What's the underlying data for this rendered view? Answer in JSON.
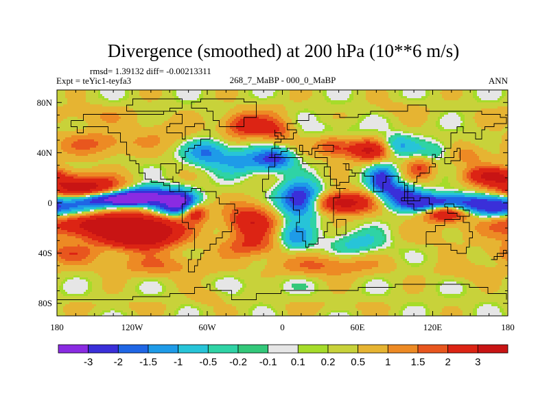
{
  "chart_data": {
    "type": "heatmap",
    "title": "Divergence (smoothed) at 200 hPa (10**6 m/s)",
    "stats_text": "rmsd= 1.39132 diff= -0.00213311",
    "left_label": "Expt = teYic1-teyfa3",
    "center_label": "268_7_MaBP - 000_0_MaBP",
    "right_label": "ANN",
    "x_axis": {
      "range": [
        -180,
        180
      ],
      "ticks": [
        -180,
        -120,
        -60,
        0,
        60,
        120,
        180
      ],
      "tick_labels": [
        "180",
        "120W",
        "60W",
        "0",
        "60E",
        "120E",
        "180"
      ]
    },
    "y_axis": {
      "range": [
        -90,
        90
      ],
      "ticks": [
        80,
        40,
        0,
        -40,
        -80
      ],
      "tick_labels": [
        "80N",
        "40N",
        "0",
        "40S",
        "80S"
      ]
    },
    "colorbar": {
      "boundary_labels": [
        "-3",
        "-2",
        "-1.5",
        "-1",
        "-0.5",
        "-0.2",
        "-0.1",
        "0.1",
        "0.2",
        "0.5",
        "1",
        "1.5",
        "2",
        "3"
      ],
      "boundaries": [
        -3,
        -2,
        -1.5,
        -1,
        -0.5,
        -0.2,
        -0.1,
        0.1,
        0.2,
        0.5,
        1,
        1.5,
        2,
        3
      ],
      "colors": [
        "#8a2be2",
        "#3a2fd9",
        "#1f66e5",
        "#1e9be8",
        "#27c4d8",
        "#2fd3a5",
        "#33c87a",
        "#e6e6e6",
        "#a6dc2a",
        "#c8d23a",
        "#e6b432",
        "#ed8a24",
        "#e8561e",
        "#dc2414",
        "#c81414"
      ]
    },
    "field_features": [
      {
        "lon": 0,
        "lat": 0,
        "value": 0.3,
        "sx": 400,
        "sy": 400
      },
      {
        "lon": -160,
        "lat": 12,
        "value": 3.5,
        "sx": 22,
        "sy": 7
      },
      {
        "lon": -145,
        "lat": -17,
        "value": 3.6,
        "sx": 30,
        "sy": 8
      },
      {
        "lon": -100,
        "lat": -22,
        "value": 2.2,
        "sx": 18,
        "sy": 9
      },
      {
        "lon": -118,
        "lat": -28,
        "value": 2.5,
        "sx": 18,
        "sy": 7
      },
      {
        "lon": -170,
        "lat": -40,
        "value": 1.4,
        "sx": 18,
        "sy": 6
      },
      {
        "lon": -135,
        "lat": 3,
        "value": -3.8,
        "sx": 28,
        "sy": 4
      },
      {
        "lon": -110,
        "lat": 6,
        "value": -3.0,
        "sx": 15,
        "sy": 5
      },
      {
        "lon": -82,
        "lat": 0,
        "value": -3.0,
        "sx": 9,
        "sy": 7
      },
      {
        "lon": -70,
        "lat": -8,
        "value": 2.4,
        "sx": 7,
        "sy": 5
      },
      {
        "lon": -95,
        "lat": -5,
        "value": -1.6,
        "sx": 10,
        "sy": 4
      },
      {
        "lon": -162,
        "lat": -5,
        "value": -2.0,
        "sx": 14,
        "sy": 5
      },
      {
        "lon": -150,
        "lat": 47,
        "value": 1.3,
        "sx": 22,
        "sy": 7
      },
      {
        "lon": -155,
        "lat": 70,
        "value": 0.6,
        "sx": 30,
        "sy": 6
      },
      {
        "lon": -95,
        "lat": 55,
        "value": 0.6,
        "sx": 20,
        "sy": 8
      },
      {
        "lon": -60,
        "lat": 40,
        "value": -1.8,
        "sx": 12,
        "sy": 7
      },
      {
        "lon": -30,
        "lat": 33,
        "value": -1.5,
        "sx": 15,
        "sy": 7
      },
      {
        "lon": -5,
        "lat": 35,
        "value": -2.2,
        "sx": 10,
        "sy": 6
      },
      {
        "lon": -30,
        "lat": 62,
        "value": 2.3,
        "sx": 12,
        "sy": 7
      },
      {
        "lon": -5,
        "lat": 58,
        "value": 1.6,
        "sx": 10,
        "sy": 7
      },
      {
        "lon": 40,
        "lat": 58,
        "value": -0.4,
        "sx": 18,
        "sy": 6
      },
      {
        "lon": -10,
        "lat": 75,
        "value": 0.3,
        "sx": 12,
        "sy": 6
      },
      {
        "lon": 95,
        "lat": 75,
        "value": 0.4,
        "sx": 18,
        "sy": 5
      },
      {
        "lon": 70,
        "lat": 42,
        "value": 2.8,
        "sx": 14,
        "sy": 6
      },
      {
        "lon": 40,
        "lat": 45,
        "value": 1.8,
        "sx": 10,
        "sy": 6
      },
      {
        "lon": 90,
        "lat": 45,
        "value": -1.8,
        "sx": 10,
        "sy": 6
      },
      {
        "lon": 125,
        "lat": 40,
        "value": -1.2,
        "sx": 12,
        "sy": 6
      },
      {
        "lon": 145,
        "lat": 38,
        "value": 1.1,
        "sx": 16,
        "sy": 6
      },
      {
        "lon": 110,
        "lat": 28,
        "value": 1.6,
        "sx": 8,
        "sy": 6
      },
      {
        "lon": 165,
        "lat": 22,
        "value": 2.5,
        "sx": 15,
        "sy": 5
      },
      {
        "lon": 15,
        "lat": 2,
        "value": -3.8,
        "sx": 12,
        "sy": 9
      },
      {
        "lon": 48,
        "lat": 0,
        "value": 3.6,
        "sx": 20,
        "sy": 6
      },
      {
        "lon": 80,
        "lat": 18,
        "value": -2.6,
        "sx": 8,
        "sy": 8
      },
      {
        "lon": 95,
        "lat": 8,
        "value": -2.0,
        "sx": 10,
        "sy": 5
      },
      {
        "lon": 125,
        "lat": 0,
        "value": -3.3,
        "sx": 30,
        "sy": 5
      },
      {
        "lon": 170,
        "lat": -5,
        "value": -2.0,
        "sx": 14,
        "sy": 5
      },
      {
        "lon": 130,
        "lat": -8,
        "value": 3.0,
        "sx": 12,
        "sy": 5
      },
      {
        "lon": 125,
        "lat": -25,
        "value": 0.4,
        "sx": 22,
        "sy": 8
      },
      {
        "lon": -25,
        "lat": -15,
        "value": 2.6,
        "sx": 14,
        "sy": 10
      },
      {
        "lon": -25,
        "lat": -35,
        "value": 1.4,
        "sx": 18,
        "sy": 6
      },
      {
        "lon": 10,
        "lat": -28,
        "value": -1.6,
        "sx": 10,
        "sy": 8
      },
      {
        "lon": 60,
        "lat": -32,
        "value": -1.0,
        "sx": 16,
        "sy": 7
      },
      {
        "lon": 35,
        "lat": -50,
        "value": 1.3,
        "sx": 30,
        "sy": 6
      },
      {
        "lon": -100,
        "lat": -50,
        "value": 1.1,
        "sx": 30,
        "sy": 6
      },
      {
        "lon": -5,
        "lat": -65,
        "value": -0.2,
        "sx": 25,
        "sy": 5
      },
      {
        "lon": 150,
        "lat": -55,
        "value": 0.6,
        "sx": 20,
        "sy": 5
      },
      {
        "lon": -130,
        "lat": -82,
        "value": 0.3,
        "sx": 30,
        "sy": 4
      },
      {
        "lon": 40,
        "lat": -82,
        "value": 0.3,
        "sx": 30,
        "sy": 4
      },
      {
        "lon": -60,
        "lat": -75,
        "value": 0.7,
        "sx": 8,
        "sy": 4
      }
    ]
  }
}
